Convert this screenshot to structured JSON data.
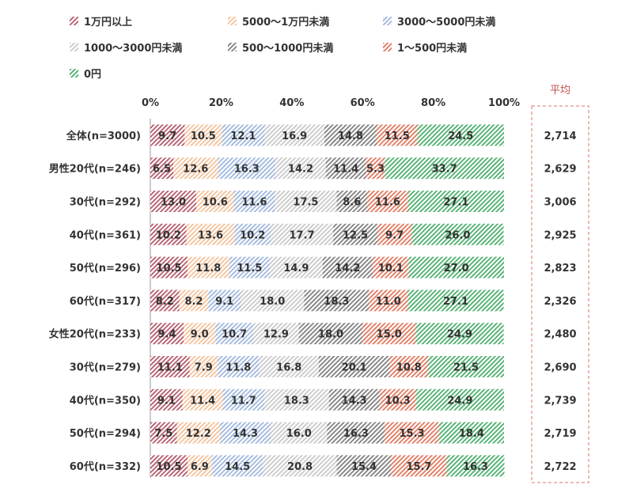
{
  "chart_data": {
    "type": "bar",
    "orientation": "horizontal",
    "stacked": "percent",
    "legend_position": "top",
    "grid": false,
    "xlim": [
      0,
      100
    ],
    "x_ticks": [
      "0%",
      "20%",
      "40%",
      "60%",
      "80%",
      "100%"
    ],
    "categories": [
      "全体(n=3000)",
      "男性20代(n=246)",
      "30代(n=292)",
      "40代(n=361)",
      "50代(n=296)",
      "60代(n=317)",
      "女性20代(n=233)",
      "30代(n=279)",
      "40代(n=350)",
      "50代(n=294)",
      "60代(n=332)"
    ],
    "series": [
      {
        "name": "1万円以上",
        "color": "#b35a6b",
        "values": [
          9.7,
          6.5,
          13.0,
          10.2,
          10.5,
          8.2,
          9.4,
          11.1,
          9.1,
          7.5,
          10.5
        ]
      },
      {
        "name": "5000～1万円未満",
        "color": "#f2c29b",
        "values": [
          10.5,
          12.6,
          10.6,
          13.6,
          11.8,
          8.2,
          9.0,
          7.9,
          11.4,
          12.2,
          6.9
        ]
      },
      {
        "name": "3000～5000円未満",
        "color": "#9fb7dd",
        "values": [
          12.1,
          16.3,
          11.6,
          10.2,
          11.5,
          9.1,
          10.7,
          11.8,
          11.7,
          14.3,
          14.5
        ]
      },
      {
        "name": "1000～3000円未満",
        "color": "#c9c9c9",
        "values": [
          16.9,
          14.2,
          17.5,
          17.7,
          14.9,
          18.0,
          12.9,
          16.8,
          18.3,
          16.0,
          20.8
        ]
      },
      {
        "name": "500～1000円未満",
        "color": "#7f7f7f",
        "values": [
          14.8,
          11.4,
          8.6,
          12.5,
          14.2,
          18.3,
          18.0,
          20.1,
          14.3,
          16.3,
          15.4
        ]
      },
      {
        "name": "1～500円未満",
        "color": "#e0785e",
        "values": [
          11.5,
          5.3,
          11.6,
          9.7,
          10.1,
          11.0,
          15.0,
          10.8,
          10.3,
          15.3,
          15.7
        ]
      },
      {
        "name": "0円",
        "color": "#4cae6c",
        "values": [
          24.5,
          33.7,
          27.1,
          26.0,
          27.0,
          27.1,
          24.9,
          21.5,
          24.9,
          18.4,
          16.3
        ]
      }
    ],
    "average": {
      "label": "平均",
      "values": [
        "2,714",
        "2,629",
        "3,006",
        "2,925",
        "2,823",
        "2,326",
        "2,480",
        "2,690",
        "2,739",
        "2,719",
        "2,722"
      ]
    }
  }
}
